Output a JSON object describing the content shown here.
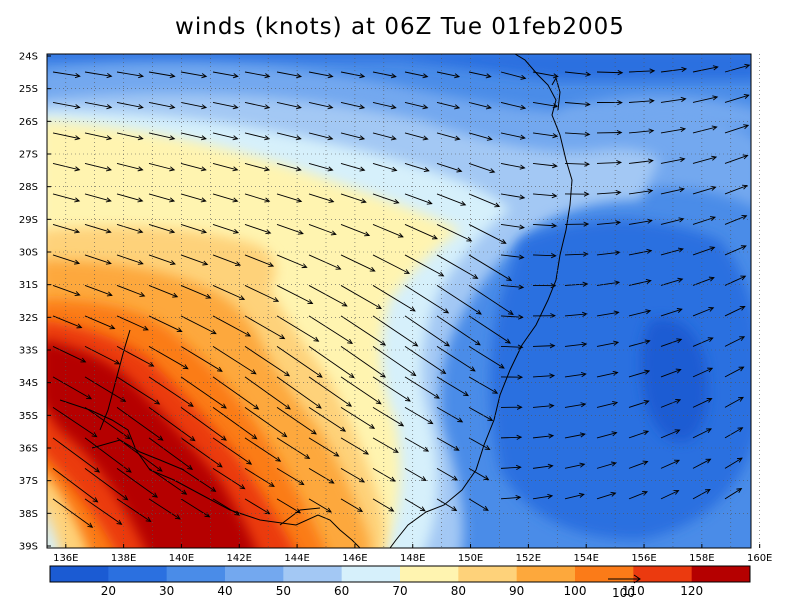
{
  "title": "winds (knots) at 06Z Tue 01feb2005",
  "lat_labels": [
    "24S",
    "25S",
    "26S",
    "27S",
    "28S",
    "29S",
    "30S",
    "31S",
    "32S",
    "33S",
    "34S",
    "35S",
    "36S",
    "37S",
    "38S",
    "39S"
  ],
  "lon_labels": [
    "136E",
    "138E",
    "140E",
    "142E",
    "144E",
    "146E",
    "148E",
    "150E",
    "152E",
    "154E",
    "156E",
    "158E",
    "160E"
  ],
  "colorbar": {
    "labels": [
      "20",
      "30",
      "40",
      "50",
      "60",
      "70",
      "80",
      "90",
      "100",
      "110",
      "120"
    ],
    "colors": [
      "#1b5bd3",
      "#2b70e0",
      "#4a8ce8",
      "#73a8ef",
      "#a3c8f4",
      "#d6f0fb",
      "#fff4b0",
      "#fed27a",
      "#fda83c",
      "#fb7b18",
      "#eb3a0f",
      "#b50000"
    ]
  },
  "reference_vector": {
    "label": "100"
  },
  "colors": {
    "coast": "#000000",
    "arrow": "#000000",
    "grid": "#555555"
  }
}
